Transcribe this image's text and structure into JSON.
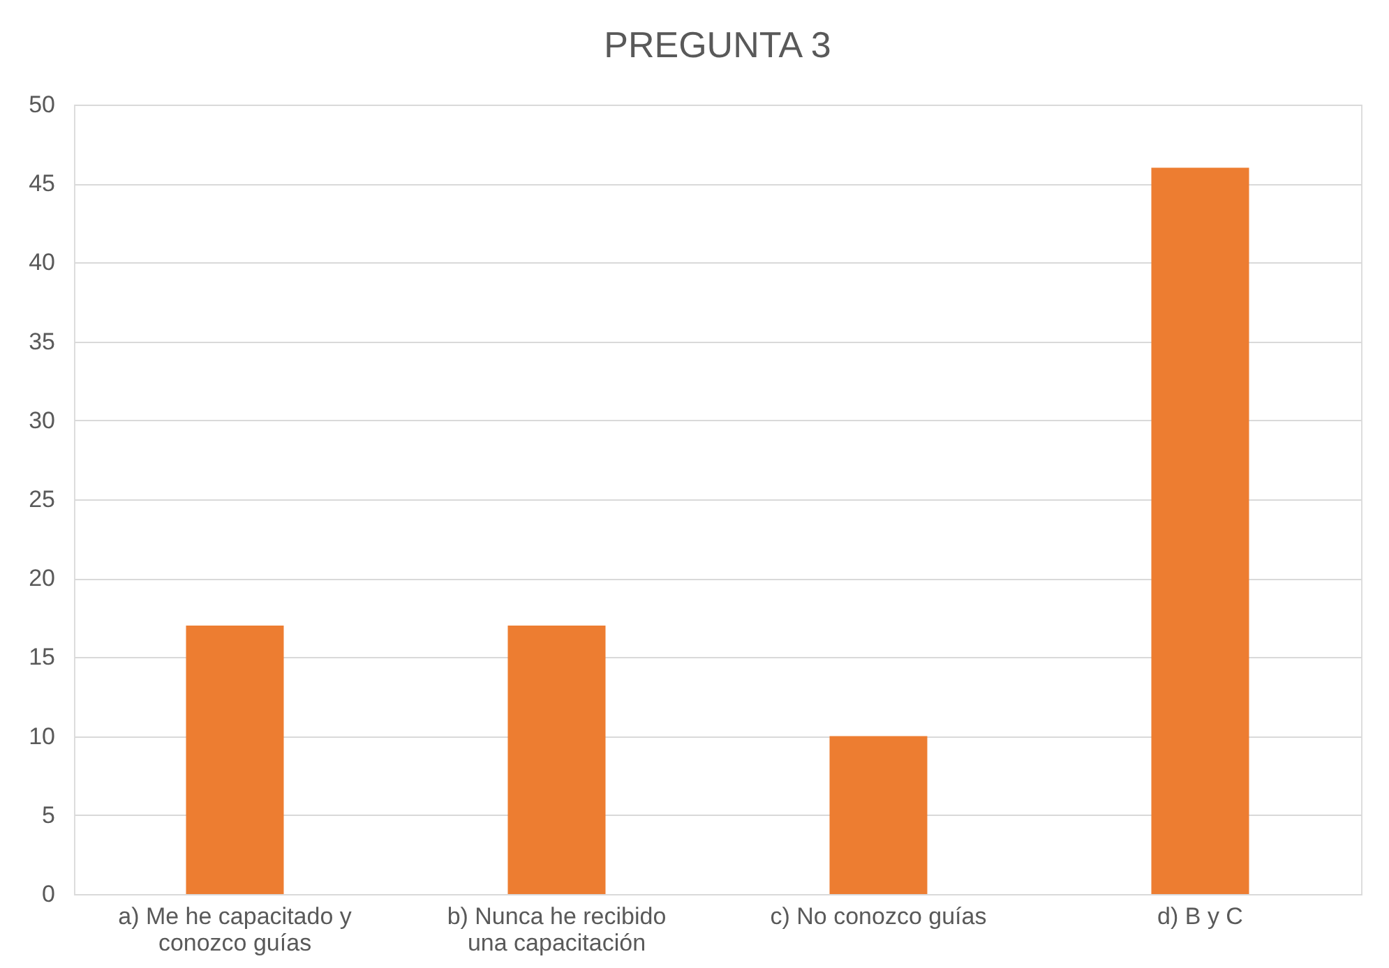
{
  "chart_data": {
    "type": "bar",
    "title": "PREGUNTA 3",
    "categories": [
      "a) Me he capacitado y\nconozco guías",
      "b) Nunca he recibido\nuna capacitación",
      "c) No conozco guías",
      "d) B y C"
    ],
    "values": [
      17,
      17,
      10,
      46
    ],
    "color": "#ed7d31",
    "ylim": [
      0,
      50
    ],
    "yticks": [
      0,
      5,
      10,
      15,
      20,
      25,
      30,
      35,
      40,
      45,
      50
    ],
    "grid": "y"
  }
}
